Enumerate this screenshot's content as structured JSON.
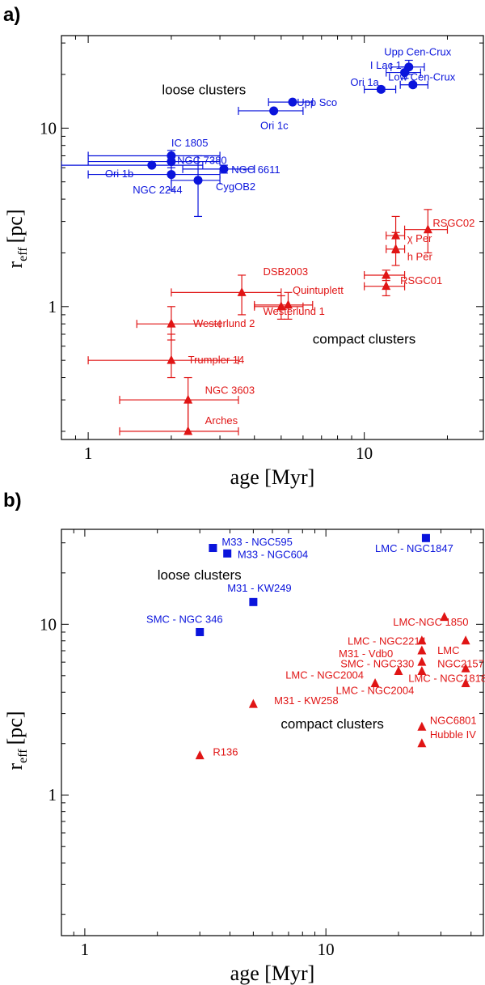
{
  "colors": {
    "loose": "#0a14dc",
    "compact": "#e01515",
    "axis": "#000000"
  },
  "chart_data": [
    {
      "type": "scatter",
      "panel_label": "a)",
      "xlabel": "age [Myr]",
      "ylabel": "r",
      "ylabel_sub": "eff",
      "ylabel_unit": "[pc]",
      "xscale": "log",
      "yscale": "log",
      "xlim": [
        0.8,
        27
      ],
      "ylim": [
        0.18,
        33
      ],
      "xticks": [
        {
          "v": 1,
          "label": "1"
        },
        {
          "v": 10,
          "label": "10"
        }
      ],
      "yticks": [
        {
          "v": 1,
          "label": "1"
        },
        {
          "v": 10,
          "label": "10"
        }
      ],
      "annotations": [
        {
          "text": "loose clusters",
          "x": 1.85,
          "y": 15.5
        },
        {
          "text": "compact clusters",
          "x": 6.5,
          "y": 0.62
        }
      ],
      "series": [
        {
          "name": "loose clusters",
          "marker": "circle",
          "color": "#0a14dc",
          "points": [
            {
              "label": "Upp Cen-Crux",
              "x": 14.5,
              "y": 22,
              "xerr": [
                12.5,
                16.5
              ],
              "yerr": [
                20,
                24
              ],
              "lx": 11.8,
              "ly": 25.5
            },
            {
              "label": "I Lac 1",
              "x": 14,
              "y": 20.5,
              "xerr": [
                12,
                16
              ],
              "yerr": [
                19,
                22
              ],
              "lx": 10.5,
              "ly": 21.5
            },
            {
              "label": "Ori 1a",
              "x": 11.5,
              "y": 16.5,
              "xerr": [
                10,
                13
              ],
              "yerr": [
                16,
                17
              ],
              "lx": 8.9,
              "ly": 17.3
            },
            {
              "label": "Low Cen-Crux",
              "x": 15,
              "y": 17.5,
              "xerr": [
                13.5,
                17
              ],
              "yerr": [
                17,
                18
              ],
              "lx": 12.2,
              "ly": 18.5
            },
            {
              "label": "Upp Sco",
              "x": 5.5,
              "y": 14,
              "xerr": [
                4.5,
                6.5
              ],
              "yerr": [
                14,
                14
              ],
              "lx": 5.7,
              "ly": 13.3
            },
            {
              "label": "Ori 1c",
              "x": 4.7,
              "y": 12.5,
              "xerr": [
                3.5,
                6
              ],
              "yerr": [
                12.5,
                12.5
              ],
              "lx": 4.2,
              "ly": 9.9
            },
            {
              "label": "IC 1805",
              "x": 2,
              "y": 7,
              "xerr": [
                1,
                3
              ],
              "yerr": [
                6.5,
                7.5
              ],
              "lx": 2,
              "ly": 7.9
            },
            {
              "label": "NGC 7380",
              "x": 2,
              "y": 6.5,
              "xerr": [
                1,
                3
              ],
              "yerr": [
                6,
                7
              ],
              "lx": 2.1,
              "ly": 6.3
            },
            {
              "label": "Ori 1b",
              "x": 1.7,
              "y": 6.2,
              "xerr": [
                0.8,
                2.6
              ],
              "yerr": [
                6.2,
                6.2
              ],
              "lx": 1.15,
              "ly": 5.3
            },
            {
              "label": "NGC 6611",
              "x": 3.1,
              "y": 5.9,
              "xerr": [
                2.2,
                4
              ],
              "yerr": [
                5.6,
                6.2
              ],
              "lx": 3.3,
              "ly": 5.6
            },
            {
              "label": "NGC 2244",
              "x": 2,
              "y": 5.5,
              "xerr": [
                1,
                3
              ],
              "yerr": [
                4.5,
                6.5
              ],
              "lx": 1.45,
              "ly": 4.3
            },
            {
              "label": "CygOB2",
              "x": 2.5,
              "y": 5.1,
              "xerr": [
                2,
                3
              ],
              "yerr": [
                3.2,
                7
              ],
              "lx": 2.9,
              "ly": 4.5
            }
          ]
        },
        {
          "name": "compact clusters",
          "marker": "triangle",
          "color": "#e01515",
          "points": [
            {
              "label": "RSGC02",
              "x": 17,
              "y": 2.7,
              "xerr": [
                14,
                20
              ],
              "yerr": [
                2,
                3.5
              ],
              "lx": 17.7,
              "ly": 2.8
            },
            {
              "label": "χ Per",
              "x": 13,
              "y": 2.5,
              "xerr": [
                12,
                14
              ],
              "yerr": [
                2,
                3.2
              ],
              "lx": 14.3,
              "ly": 2.3
            },
            {
              "label": "h Per",
              "x": 13,
              "y": 2.1,
              "xerr": [
                12,
                14
              ],
              "yerr": [
                1.7,
                2.6
              ],
              "lx": 14.3,
              "ly": 1.82
            },
            {
              "label": "RSGC01",
              "x": 12,
              "y": 1.5,
              "xerr": [
                10,
                14
              ],
              "yerr": [
                1.4,
                1.6
              ],
              "lx": 13.5,
              "ly": 1.34
            },
            {
              "label": "",
              "x": 12,
              "y": 1.3,
              "xerr": [
                10,
                14
              ],
              "yerr": [
                1.15,
                1.45
              ],
              "lx": 12,
              "ly": 1.3
            },
            {
              "label": "DSB2003",
              "x": 3.6,
              "y": 1.2,
              "xerr": [
                2,
                5
              ],
              "yerr": [
                0.9,
                1.5
              ],
              "lx": 4.3,
              "ly": 1.5
            },
            {
              "label": "Quintuplett",
              "x": 5.3,
              "y": 1.02,
              "xerr": [
                4,
                6.5
              ],
              "yerr": [
                0.85,
                1.2
              ],
              "lx": 5.5,
              "ly": 1.18
            },
            {
              "label": "Westerlund 1",
              "x": 5,
              "y": 1,
              "xerr": [
                4,
                6
              ],
              "yerr": [
                0.85,
                1.15
              ],
              "lx": 4.3,
              "ly": 0.9
            },
            {
              "label": "Westerlund 2",
              "x": 2,
              "y": 0.8,
              "xerr": [
                1.5,
                3
              ],
              "yerr": [
                0.65,
                1
              ],
              "lx": 2.4,
              "ly": 0.77
            },
            {
              "label": "Trumpler 14",
              "x": 2,
              "y": 0.5,
              "xerr": [
                1,
                3.5
              ],
              "yerr": [
                0.4,
                0.7
              ],
              "lx": 2.3,
              "ly": 0.48
            },
            {
              "label": "NGC 3603",
              "x": 2.3,
              "y": 0.3,
              "xerr": [
                1.3,
                3.5
              ],
              "yerr": [
                0.2,
                0.4
              ],
              "lx": 2.65,
              "ly": 0.325
            },
            {
              "label": "Arches",
              "x": 2.3,
              "y": 0.2,
              "xerr": [
                1.3,
                3.5
              ],
              "yerr": [
                0.2,
                0.3
              ],
              "lx": 2.65,
              "ly": 0.22
            }
          ]
        }
      ]
    },
    {
      "type": "scatter",
      "panel_label": "b)",
      "xlabel": "age [Myr]",
      "ylabel": "r",
      "ylabel_sub": "eff",
      "ylabel_unit": "[pc]",
      "xscale": "log",
      "yscale": "log",
      "xlim": [
        0.8,
        45
      ],
      "ylim": [
        0.15,
        36
      ],
      "xticks": [
        {
          "v": 1,
          "label": "1"
        },
        {
          "v": 10,
          "label": "10"
        }
      ],
      "yticks": [
        {
          "v": 1,
          "label": "1"
        },
        {
          "v": 10,
          "label": "10"
        }
      ],
      "annotations": [
        {
          "text": "loose clusters",
          "x": 2.0,
          "y": 18.3
        },
        {
          "text": "compact clusters",
          "x": 6.5,
          "y": 2.45
        }
      ],
      "series": [
        {
          "name": "loose clusters",
          "marker": "square",
          "color": "#0a14dc",
          "points": [
            {
              "label": "M33 - NGC595",
              "x": 3.4,
              "y": 28,
              "lx": 3.7,
              "ly": 29
            },
            {
              "label": "M33 - NGC604",
              "x": 3.9,
              "y": 26,
              "lx": 4.3,
              "ly": 24.5
            },
            {
              "label": "LMC - NGC1847",
              "x": 26,
              "y": 32,
              "lx": 16,
              "ly": 26.5
            },
            {
              "label": "M31 - KW249",
              "x": 5,
              "y": 13.5,
              "lx": 3.9,
              "ly": 15.5
            },
            {
              "label": "SMC - NGC 346",
              "x": 3,
              "y": 9,
              "lx": 1.8,
              "ly": 10.2
            }
          ]
        },
        {
          "name": "compact clusters",
          "marker": "triangle",
          "color": "#e01515",
          "points": [
            {
              "label": "LMC-NGC 1850",
              "x": 31,
              "y": 11,
              "lx": 19,
              "ly": 9.8
            },
            {
              "label": "LMC - NGC2214",
              "x": 25,
              "y": 8,
              "lx": 12.3,
              "ly": 7.6
            },
            {
              "label": "LMC",
              "x": 38,
              "y": 8,
              "lx": 29,
              "ly": 6.7
            },
            {
              "label": "NGC2157",
              "x": 38,
              "y": 5.5,
              "lx": 29,
              "ly": 5.6
            },
            {
              "label": "M31 - Vdb0",
              "x": 25,
              "y": 7,
              "lx": 11.3,
              "ly": 6.4
            },
            {
              "label": "SMC - NGC330",
              "x": 25,
              "y": 6,
              "lx": 11.5,
              "ly": 5.6
            },
            {
              "label": "LMC - NGC2004",
              "x": 20,
              "y": 5.3,
              "lx": 6.8,
              "ly": 4.8
            },
            {
              "label": "",
              "x": 25,
              "y": 5.3,
              "lx": 25,
              "ly": 5.3
            },
            {
              "label": "LMC - NGC1818",
              "x": 38,
              "y": 4.5,
              "lx": 22,
              "ly": 4.6
            },
            {
              "label": "LMC - NGC2004",
              "x": 16,
              "y": 4.5,
              "lx": 11,
              "ly": 3.9
            },
            {
              "label": "M31 - KW258",
              "x": 5,
              "y": 3.4,
              "lx": 6.1,
              "ly": 3.4
            },
            {
              "label": "NGC6801",
              "x": 25,
              "y": 2.5,
              "lx": 27,
              "ly": 2.6
            },
            {
              "label": "Hubble IV",
              "x": 25,
              "y": 2,
              "lx": 27,
              "ly": 2.15
            },
            {
              "label": "R136",
              "x": 3,
              "y": 1.7,
              "lx": 3.4,
              "ly": 1.7
            }
          ]
        }
      ]
    }
  ]
}
